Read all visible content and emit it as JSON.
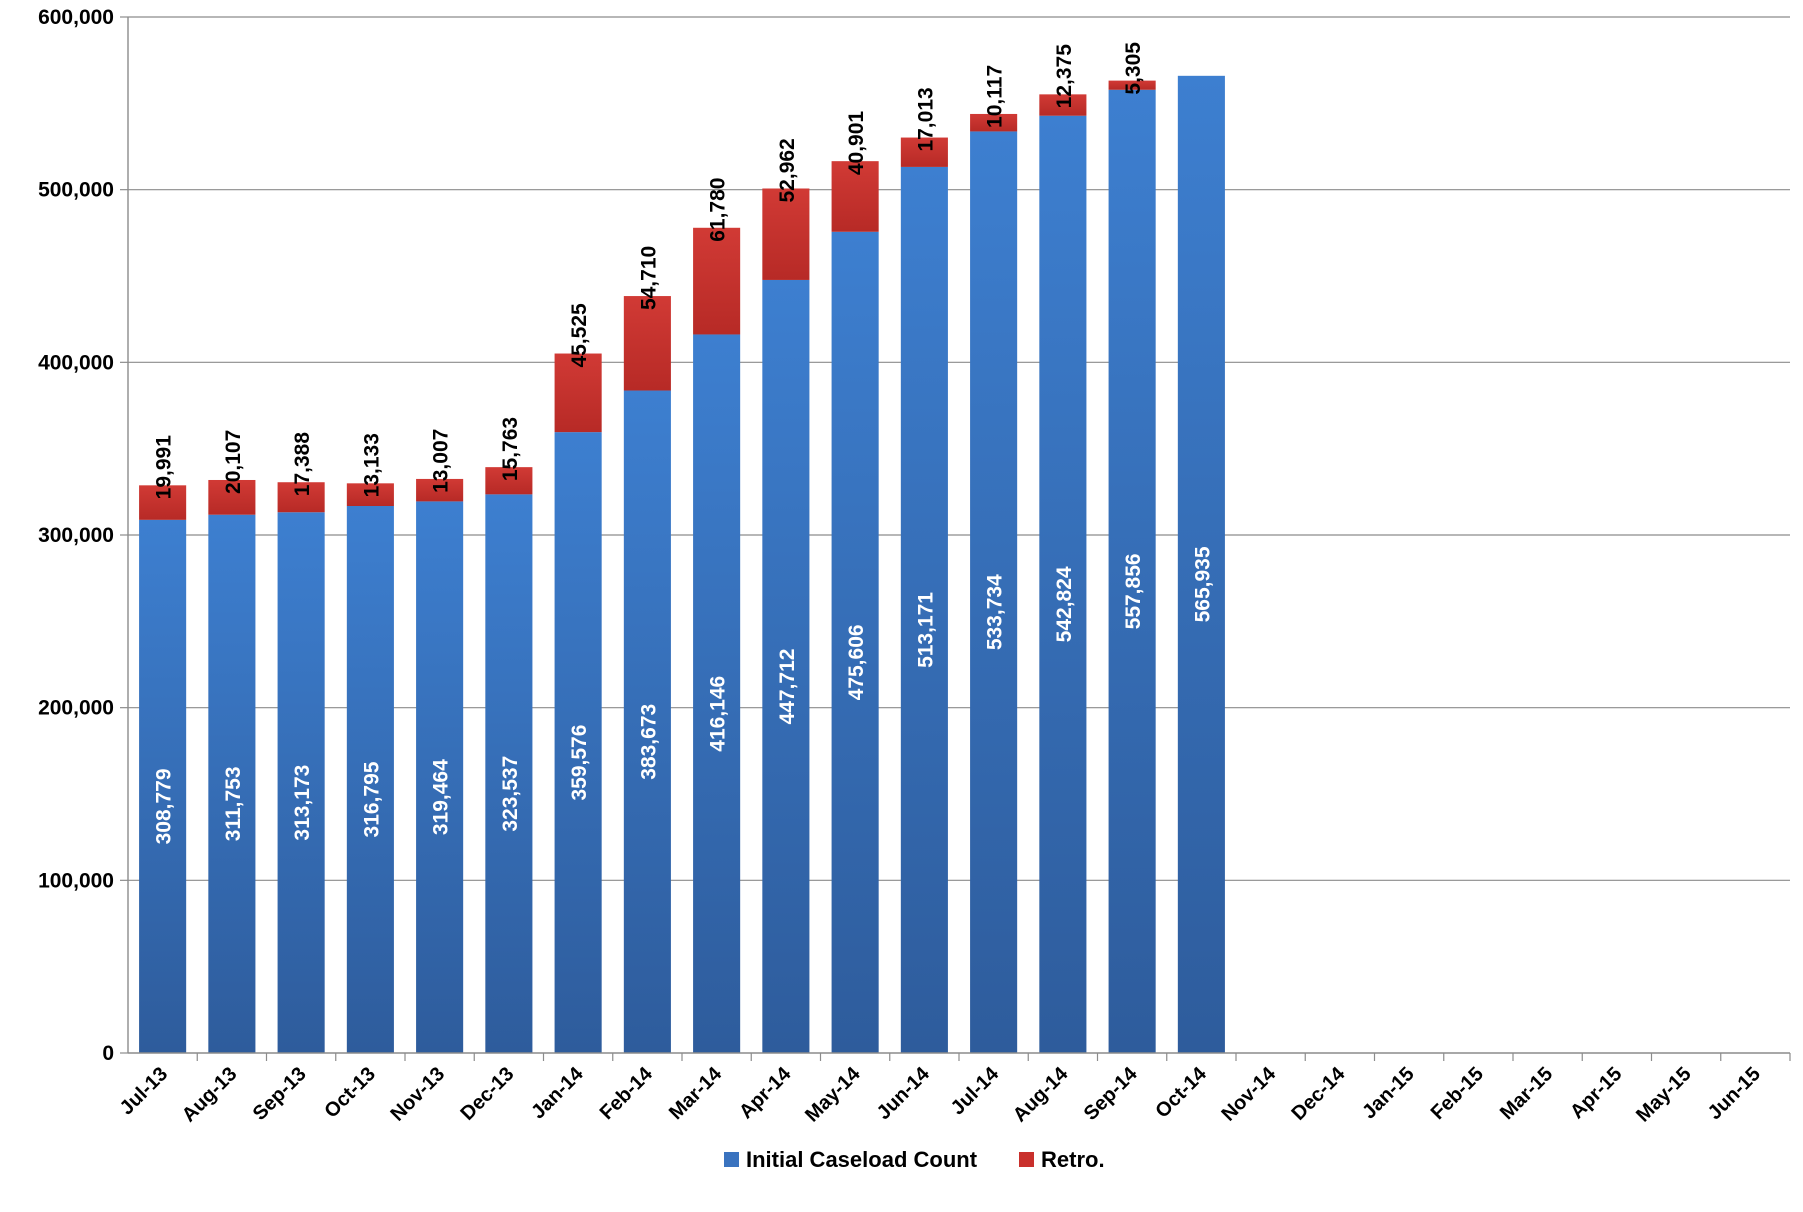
{
  "chart_data": {
    "type": "bar",
    "stacked": true,
    "title": "",
    "xlabel": "",
    "ylabel": "",
    "ylim": [
      0,
      600000
    ],
    "yticks": [
      0,
      100000,
      200000,
      300000,
      400000,
      500000,
      600000
    ],
    "ytick_labels": [
      "0",
      "100,000",
      "200,000",
      "300,000",
      "400,000",
      "500,000",
      "600,000"
    ],
    "grid": true,
    "legend_position": "bottom",
    "categories": [
      "Jul-13",
      "Aug-13",
      "Sep-13",
      "Oct-13",
      "Nov-13",
      "Dec-13",
      "Jan-14",
      "Feb-14",
      "Mar-14",
      "Apr-14",
      "May-14",
      "Jun-14",
      "Jul-14",
      "Aug-14",
      "Sep-14",
      "Oct-14",
      "Nov-14",
      "Dec-14",
      "Jan-15",
      "Feb-15",
      "Mar-15",
      "Apr-15",
      "May-15",
      "Jun-15"
    ],
    "series": [
      {
        "name": "Initial Caseload Count",
        "color": "#3A73BF",
        "values": [
          308779,
          311753,
          313173,
          316795,
          319464,
          323537,
          359576,
          383673,
          416146,
          447712,
          475606,
          513171,
          533734,
          542824,
          557856,
          565935,
          null,
          null,
          null,
          null,
          null,
          null,
          null,
          null
        ],
        "labels": [
          "308,779",
          "311,753",
          "313,173",
          "316,795",
          "319,464",
          "323,537",
          "359,576",
          "383,673",
          "416,146",
          "447,712",
          "475,606",
          "513,171",
          "533,734",
          "542,824",
          "557,856",
          "565,935",
          "",
          "",
          "",
          "",
          "",
          "",
          "",
          ""
        ]
      },
      {
        "name": "Retro.",
        "color": "#C9302C",
        "values": [
          19991,
          20107,
          17388,
          13133,
          13007,
          15763,
          45525,
          54710,
          61780,
          52962,
          40901,
          17013,
          10117,
          12375,
          5305,
          null,
          null,
          null,
          null,
          null,
          null,
          null,
          null,
          null
        ],
        "labels": [
          "19,991",
          "20,107",
          "17,388",
          "13,133",
          "13,007",
          "15,763",
          "45,525",
          "54,710",
          "61,780",
          "52,962",
          "40,901",
          "17,013",
          "10,117",
          "12,375",
          "5,305",
          "",
          "",
          "",
          "",
          "",
          "",
          "",
          "",
          ""
        ]
      }
    ]
  }
}
